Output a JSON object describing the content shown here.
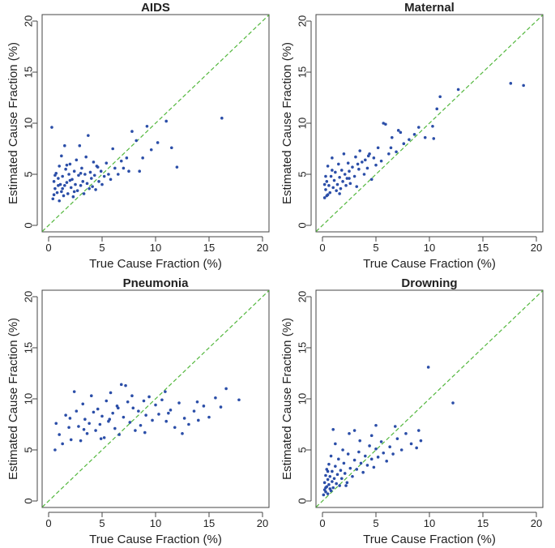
{
  "colors": {
    "points": "#2b4ea8",
    "diagonal": "#53b73d",
    "axes": "#444444"
  },
  "chart_data": [
    {
      "type": "scatter",
      "title": "AIDS",
      "xlabel": "True Cause Fraction (%)",
      "ylabel": "Estimated Cause Fraction (%)",
      "xlim": [
        0,
        20
      ],
      "ylim": [
        0,
        20
      ],
      "xticks": [
        "0",
        "5",
        "10",
        "15",
        "20"
      ],
      "yticks": [
        "0",
        "5",
        "10",
        "15",
        "20"
      ],
      "reference_line": "y = x",
      "points": [
        [
          0.3,
          9.6
        ],
        [
          0.4,
          2.6
        ],
        [
          0.5,
          3.0
        ],
        [
          0.5,
          4.3
        ],
        [
          0.6,
          3.6
        ],
        [
          0.7,
          5.1
        ],
        [
          0.8,
          3.2
        ],
        [
          0.9,
          4.6
        ],
        [
          1.0,
          2.4
        ],
        [
          1.0,
          5.8
        ],
        [
          1.1,
          4.0
        ],
        [
          1.2,
          3.3
        ],
        [
          1.2,
          6.8
        ],
        [
          1.3,
          4.8
        ],
        [
          1.4,
          2.9
        ],
        [
          1.5,
          3.9
        ],
        [
          1.5,
          7.8
        ],
        [
          1.6,
          5.5
        ],
        [
          1.7,
          4.2
        ],
        [
          1.8,
          3.1
        ],
        [
          1.9,
          5.0
        ],
        [
          2.0,
          6.0
        ],
        [
          2.1,
          3.7
        ],
        [
          2.2,
          4.5
        ],
        [
          2.3,
          2.8
        ],
        [
          2.4,
          5.3
        ],
        [
          2.5,
          4.0
        ],
        [
          2.6,
          6.4
        ],
        [
          2.7,
          3.4
        ],
        [
          2.8,
          4.9
        ],
        [
          2.9,
          7.8
        ],
        [
          3.0,
          3.9
        ],
        [
          3.1,
          5.6
        ],
        [
          3.2,
          4.3
        ],
        [
          3.3,
          3.1
        ],
        [
          3.4,
          5.0
        ],
        [
          3.5,
          6.7
        ],
        [
          3.6,
          4.1
        ],
        [
          3.7,
          8.8
        ],
        [
          3.8,
          3.6
        ],
        [
          3.9,
          5.2
        ],
        [
          4.0,
          4.6
        ],
        [
          4.1,
          3.8
        ],
        [
          4.2,
          6.2
        ],
        [
          4.3,
          4.9
        ],
        [
          4.4,
          3.5
        ],
        [
          4.5,
          5.8
        ],
        [
          4.7,
          4.3
        ],
        [
          4.9,
          5.3
        ],
        [
          5.0,
          4.0
        ],
        [
          5.2,
          4.8
        ],
        [
          5.4,
          6.1
        ],
        [
          5.6,
          5.0
        ],
        [
          5.8,
          4.5
        ],
        [
          6.0,
          7.5
        ],
        [
          6.2,
          5.6
        ],
        [
          6.5,
          5.0
        ],
        [
          6.8,
          6.3
        ],
        [
          7.0,
          5.6
        ],
        [
          7.3,
          6.6
        ],
        [
          7.5,
          5.3
        ],
        [
          7.8,
          9.2
        ],
        [
          8.2,
          8.3
        ],
        [
          8.5,
          5.3
        ],
        [
          8.8,
          6.6
        ],
        [
          9.2,
          9.7
        ],
        [
          9.6,
          7.4
        ],
        [
          10.2,
          8.1
        ],
        [
          11.5,
          7.6
        ],
        [
          11.0,
          10.2
        ],
        [
          12.0,
          5.7
        ],
        [
          16.2,
          10.5
        ],
        [
          0.6,
          4.9
        ],
        [
          1.3,
          3.6
        ],
        [
          2.0,
          4.4
        ],
        [
          3.0,
          5.1
        ],
        [
          2.4,
          3.3
        ],
        [
          1.7,
          5.9
        ],
        [
          0.9,
          3.9
        ],
        [
          4.6,
          5.7
        ]
      ]
    },
    {
      "type": "scatter",
      "title": "Maternal",
      "xlabel": "True Cause Fraction (%)",
      "ylabel": "Estimated Cause Fraction (%)",
      "xlim": [
        0,
        20
      ],
      "ylim": [
        0,
        20
      ],
      "xticks": [
        "0",
        "5",
        "10",
        "15",
        "20"
      ],
      "yticks": [
        "0",
        "5",
        "10",
        "15",
        "20"
      ],
      "reference_line": "y = x",
      "points": [
        [
          0.2,
          2.7
        ],
        [
          0.3,
          3.5
        ],
        [
          0.4,
          4.3
        ],
        [
          0.4,
          2.9
        ],
        [
          0.5,
          5.8
        ],
        [
          0.6,
          3.9
        ],
        [
          0.7,
          3.2
        ],
        [
          0.8,
          4.8
        ],
        [
          0.9,
          6.6
        ],
        [
          1.0,
          3.7
        ],
        [
          1.1,
          4.4
        ],
        [
          1.2,
          5.2
        ],
        [
          1.3,
          3.4
        ],
        [
          1.4,
          4.0
        ],
        [
          1.5,
          6.0
        ],
        [
          1.6,
          4.7
        ],
        [
          1.7,
          3.6
        ],
        [
          1.8,
          5.4
        ],
        [
          1.9,
          4.3
        ],
        [
          2.0,
          7.0
        ],
        [
          2.1,
          5.0
        ],
        [
          2.2,
          3.9
        ],
        [
          2.3,
          4.6
        ],
        [
          2.4,
          6.1
        ],
        [
          2.5,
          5.3
        ],
        [
          2.6,
          4.1
        ],
        [
          2.8,
          5.7
        ],
        [
          3.0,
          4.8
        ],
        [
          3.1,
          6.7
        ],
        [
          3.2,
          3.8
        ],
        [
          3.4,
          5.5
        ],
        [
          3.5,
          7.3
        ],
        [
          3.7,
          6.2
        ],
        [
          3.9,
          5.0
        ],
        [
          4.0,
          6.4
        ],
        [
          4.2,
          5.6
        ],
        [
          4.4,
          7.0
        ],
        [
          4.6,
          4.5
        ],
        [
          4.8,
          6.6
        ],
        [
          5.0,
          5.9
        ],
        [
          5.2,
          7.6
        ],
        [
          5.5,
          6.3
        ],
        [
          5.7,
          10.0
        ],
        [
          5.9,
          9.9
        ],
        [
          6.2,
          7.0
        ],
        [
          6.5,
          8.6
        ],
        [
          6.9,
          7.2
        ],
        [
          7.1,
          9.3
        ],
        [
          7.3,
          9.1
        ],
        [
          7.6,
          8.0
        ],
        [
          8.1,
          8.4
        ],
        [
          8.6,
          8.9
        ],
        [
          9.0,
          9.6
        ],
        [
          9.6,
          8.6
        ],
        [
          10.3,
          9.7
        ],
        [
          10.4,
          8.5
        ],
        [
          10.7,
          11.4
        ],
        [
          11.0,
          12.6
        ],
        [
          12.7,
          13.3
        ],
        [
          17.6,
          13.9
        ],
        [
          18.8,
          13.7
        ],
        [
          0.3,
          4.8
        ],
        [
          0.5,
          3.0
        ],
        [
          0.9,
          5.4
        ],
        [
          1.6,
          3.1
        ],
        [
          2.5,
          4.6
        ],
        [
          3.3,
          6.0
        ],
        [
          4.3,
          6.8
        ],
        [
          6.4,
          7.6
        ],
        [
          0.2,
          4.0
        ]
      ]
    },
    {
      "type": "scatter",
      "title": "Pneumonia",
      "xlabel": "True Cause Fraction (%)",
      "ylabel": "Estimated Cause Fraction (%)",
      "xlim": [
        0,
        20
      ],
      "ylim": [
        0,
        20
      ],
      "xticks": [
        "0",
        "5",
        "10",
        "15",
        "20"
      ],
      "yticks": [
        "0",
        "5",
        "10",
        "15",
        "20"
      ],
      "reference_line": "y = x",
      "points": [
        [
          0.6,
          5.0
        ],
        [
          0.7,
          7.6
        ],
        [
          1.0,
          6.5
        ],
        [
          1.3,
          5.6
        ],
        [
          1.6,
          8.4
        ],
        [
          1.9,
          7.2
        ],
        [
          2.1,
          6.0
        ],
        [
          2.4,
          10.7
        ],
        [
          2.6,
          8.8
        ],
        [
          2.8,
          7.3
        ],
        [
          3.0,
          5.9
        ],
        [
          3.2,
          9.5
        ],
        [
          3.4,
          8.0
        ],
        [
          3.6,
          6.6
        ],
        [
          3.8,
          7.6
        ],
        [
          4.0,
          10.3
        ],
        [
          4.2,
          8.7
        ],
        [
          4.4,
          6.9
        ],
        [
          4.6,
          9.0
        ],
        [
          4.8,
          7.5
        ],
        [
          5.0,
          8.3
        ],
        [
          5.2,
          6.2
        ],
        [
          5.4,
          9.8
        ],
        [
          5.6,
          7.8
        ],
        [
          5.8,
          10.6
        ],
        [
          6.0,
          8.6
        ],
        [
          6.2,
          7.1
        ],
        [
          6.4,
          9.3
        ],
        [
          6.6,
          6.5
        ],
        [
          6.8,
          11.4
        ],
        [
          7.0,
          8.2
        ],
        [
          7.2,
          11.3
        ],
        [
          7.4,
          9.7
        ],
        [
          7.6,
          7.7
        ],
        [
          7.9,
          9.1
        ],
        [
          8.1,
          6.9
        ],
        [
          8.4,
          8.8
        ],
        [
          8.6,
          7.4
        ],
        [
          8.9,
          9.8
        ],
        [
          9.1,
          8.4
        ],
        [
          9.4,
          10.2
        ],
        [
          9.7,
          7.9
        ],
        [
          10.0,
          9.4
        ],
        [
          10.3,
          8.5
        ],
        [
          10.6,
          9.9
        ],
        [
          11.0,
          7.8
        ],
        [
          11.4,
          8.9
        ],
        [
          11.8,
          7.2
        ],
        [
          12.2,
          9.6
        ],
        [
          12.7,
          8.1
        ],
        [
          13.1,
          7.5
        ],
        [
          13.6,
          8.8
        ],
        [
          14.0,
          7.9
        ],
        [
          14.5,
          9.3
        ],
        [
          15.0,
          8.2
        ],
        [
          15.6,
          10.1
        ],
        [
          16.1,
          9.2
        ],
        [
          17.8,
          9.9
        ],
        [
          16.6,
          11.0
        ],
        [
          10.9,
          10.7
        ],
        [
          2.0,
          8.1
        ],
        [
          3.3,
          7.0
        ],
        [
          4.9,
          6.1
        ],
        [
          6.5,
          9.1
        ],
        [
          5.7,
          8.0
        ],
        [
          7.8,
          10.3
        ],
        [
          9.0,
          6.7
        ],
        [
          11.2,
          8.6
        ],
        [
          13.9,
          9.7
        ],
        [
          12.5,
          6.6
        ]
      ]
    },
    {
      "type": "scatter",
      "title": "Drowning",
      "xlabel": "True Cause Fraction (%)",
      "ylabel": "Estimated Cause Fraction (%)",
      "xlim": [
        0,
        20
      ],
      "ylim": [
        0,
        20
      ],
      "xticks": [
        "0",
        "5",
        "10",
        "15",
        "20"
      ],
      "yticks": [
        "0",
        "5",
        "10",
        "15",
        "20"
      ],
      "reference_line": "y = x",
      "points": [
        [
          0.1,
          0.6
        ],
        [
          0.2,
          1.1
        ],
        [
          0.2,
          1.8
        ],
        [
          0.3,
          2.5
        ],
        [
          0.3,
          0.9
        ],
        [
          0.4,
          3.1
        ],
        [
          0.4,
          1.4
        ],
        [
          0.5,
          2.1
        ],
        [
          0.5,
          0.7
        ],
        [
          0.6,
          1.6
        ],
        [
          0.6,
          3.6
        ],
        [
          0.7,
          1.2
        ],
        [
          0.7,
          2.4
        ],
        [
          0.8,
          1.0
        ],
        [
          0.9,
          1.9
        ],
        [
          0.9,
          2.9
        ],
        [
          1.0,
          1.3
        ],
        [
          1.1,
          2.2
        ],
        [
          1.2,
          3.4
        ],
        [
          1.3,
          1.7
        ],
        [
          1.4,
          2.6
        ],
        [
          1.5,
          4.1
        ],
        [
          1.6,
          1.5
        ],
        [
          1.7,
          3.0
        ],
        [
          1.8,
          2.2
        ],
        [
          2.0,
          3.7
        ],
        [
          2.1,
          2.7
        ],
        [
          2.3,
          1.8
        ],
        [
          2.4,
          4.6
        ],
        [
          2.6,
          3.2
        ],
        [
          2.8,
          2.4
        ],
        [
          3.0,
          4.0
        ],
        [
          3.2,
          3.1
        ],
        [
          3.4,
          4.8
        ],
        [
          3.6,
          3.7
        ],
        [
          3.8,
          2.8
        ],
        [
          4.0,
          4.4
        ],
        [
          4.2,
          3.5
        ],
        [
          4.4,
          5.4
        ],
        [
          4.6,
          4.1
        ],
        [
          4.8,
          3.3
        ],
        [
          5.0,
          5.1
        ],
        [
          5.2,
          4.3
        ],
        [
          5.5,
          5.8
        ],
        [
          5.7,
          4.7
        ],
        [
          6.0,
          3.9
        ],
        [
          6.3,
          5.3
        ],
        [
          6.6,
          4.6
        ],
        [
          7.0,
          6.1
        ],
        [
          7.4,
          5.0
        ],
        [
          7.8,
          6.6
        ],
        [
          8.3,
          5.6
        ],
        [
          8.8,
          5.2
        ],
        [
          9.0,
          6.9
        ],
        [
          9.2,
          5.9
        ],
        [
          9.9,
          13.1
        ],
        [
          12.2,
          9.6
        ],
        [
          1.0,
          7.0
        ],
        [
          2.5,
          6.6
        ],
        [
          3.0,
          6.9
        ],
        [
          5.0,
          7.4
        ],
        [
          1.9,
          5.0
        ],
        [
          0.8,
          4.4
        ],
        [
          1.2,
          5.6
        ],
        [
          0.5,
          2.9
        ],
        [
          2.2,
          1.5
        ],
        [
          3.5,
          5.9
        ],
        [
          4.6,
          6.4
        ],
        [
          6.8,
          7.3
        ],
        [
          0.3,
          1.3
        ]
      ]
    }
  ]
}
